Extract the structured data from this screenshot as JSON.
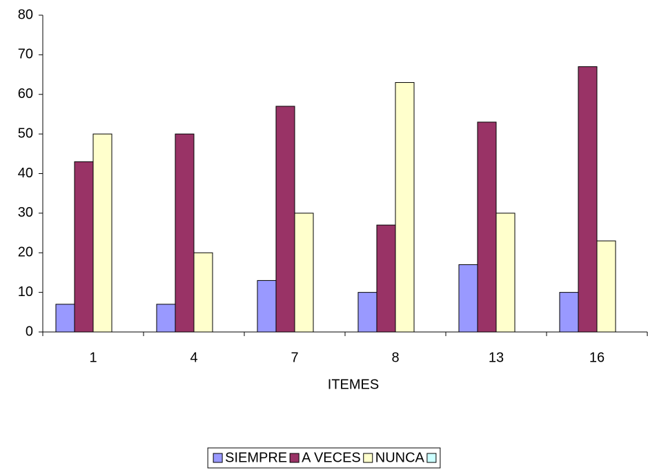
{
  "chart_data": {
    "type": "bar",
    "x_label": "ITEMES",
    "categories": [
      "1",
      "4",
      "7",
      "8",
      "13",
      "16"
    ],
    "series": [
      {
        "name": "SIEMPRE",
        "color": "#9999ff",
        "values": [
          7,
          7,
          13,
          10,
          17,
          10
        ]
      },
      {
        "name": "A VECES",
        "color": "#993366",
        "values": [
          43,
          50,
          57,
          27,
          53,
          67
        ]
      },
      {
        "name": "NUNCA",
        "color": "#ffffcc",
        "values": [
          50,
          20,
          30,
          63,
          30,
          23
        ]
      },
      {
        "name": null,
        "color": "#ccffff",
        "values": [
          null,
          null,
          null,
          null,
          null,
          null
        ]
      }
    ],
    "ylim": [
      0,
      80
    ],
    "yticks": [
      0,
      10,
      20,
      30,
      40,
      50,
      60,
      70,
      80
    ],
    "grid": false,
    "legend": "bottom"
  }
}
